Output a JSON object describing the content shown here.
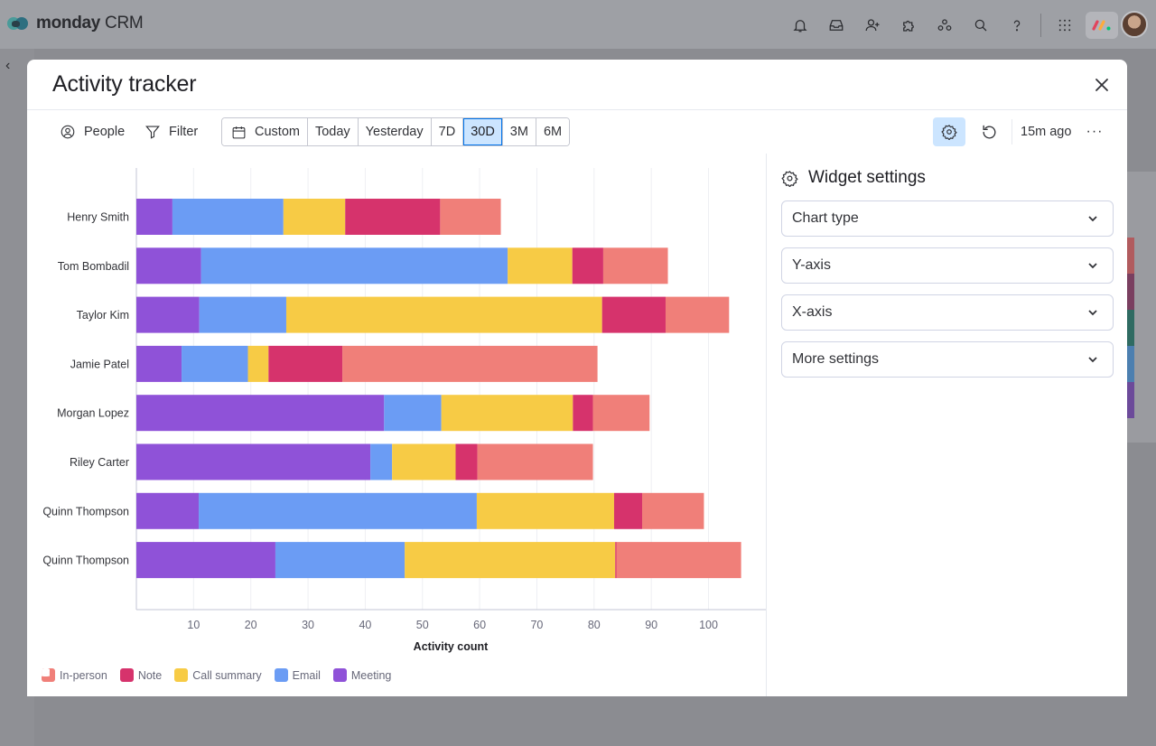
{
  "app": {
    "logo_bold": "monday",
    "logo_thin": " CRM"
  },
  "topbar_icons": [
    "bell-icon",
    "inbox-icon",
    "invite-members-icon",
    "apps-puzzle-icon",
    "workspaces-icon",
    "search-icon",
    "help-icon",
    "apps-grid-icon"
  ],
  "modal": {
    "title": "Activity tracker"
  },
  "toolbar": {
    "people_label": "People",
    "filter_label": "Filter",
    "range_custom": "Custom",
    "range_today": "Today",
    "range_yesterday": "Yesterday",
    "range_7d": "7D",
    "range_30d": "30D",
    "range_3m": "3M",
    "range_6m": "6M",
    "active_range": "30D",
    "updated": "15m ago",
    "more": "···"
  },
  "settings": {
    "title": "Widget settings",
    "sections": [
      {
        "label": "Chart type"
      },
      {
        "label": "Y-axis"
      },
      {
        "label": "X-axis"
      },
      {
        "label": "More settings"
      }
    ]
  },
  "legend": [
    {
      "label": "In-person",
      "color": "#f07f79",
      "icon": "person-icon"
    },
    {
      "label": "Note",
      "color": "#d6336c",
      "icon": "pencil-icon"
    },
    {
      "label": "Call summary",
      "color": "#f7cb45",
      "icon": "phone-icon"
    },
    {
      "label": "Email",
      "color": "#6b9cf4",
      "icon": "envelope-icon"
    },
    {
      "label": "Meeting",
      "color": "#8f52d8",
      "icon": "calendar-icon"
    }
  ],
  "chart_data": {
    "type": "bar",
    "orientation": "horizontal",
    "stacked": true,
    "xlabel": "Activity count",
    "ylabel": "",
    "xlim": [
      0,
      110
    ],
    "xticks": [
      10,
      20,
      30,
      40,
      50,
      60,
      70,
      80,
      90,
      100
    ],
    "grid": true,
    "legend_position": "bottom-left",
    "categories": [
      "Henry Smith",
      "Tom Bombadil",
      "Taylor Kim",
      "Jamie Patel",
      "Morgan Lopez",
      "Riley Carter",
      "Quinn Thompson",
      "Quinn Thompson"
    ],
    "series": [
      {
        "name": "Meeting",
        "color": "#8f52d8",
        "values": [
          6.3,
          11.3,
          11,
          7.9,
          43.3,
          40.9,
          10.9,
          24.3
        ]
      },
      {
        "name": "Email",
        "color": "#6b9cf4",
        "values": [
          19.4,
          53.6,
          15.2,
          11.6,
          10,
          3.8,
          48.6,
          22.6
        ]
      },
      {
        "name": "Call summary",
        "color": "#f7cb45",
        "values": [
          10.8,
          11.3,
          55.2,
          3.6,
          23,
          11.1,
          24,
          36.8
        ]
      },
      {
        "name": "Note",
        "color": "#d6336c",
        "values": [
          16.6,
          5.4,
          11.1,
          12.9,
          3.5,
          3.8,
          4.9,
          0.2
        ]
      },
      {
        "name": "In-person",
        "color": "#f07f79",
        "values": [
          10.6,
          11.3,
          11.1,
          44.6,
          9.9,
          20.2,
          10.8,
          21.8
        ]
      }
    ]
  }
}
